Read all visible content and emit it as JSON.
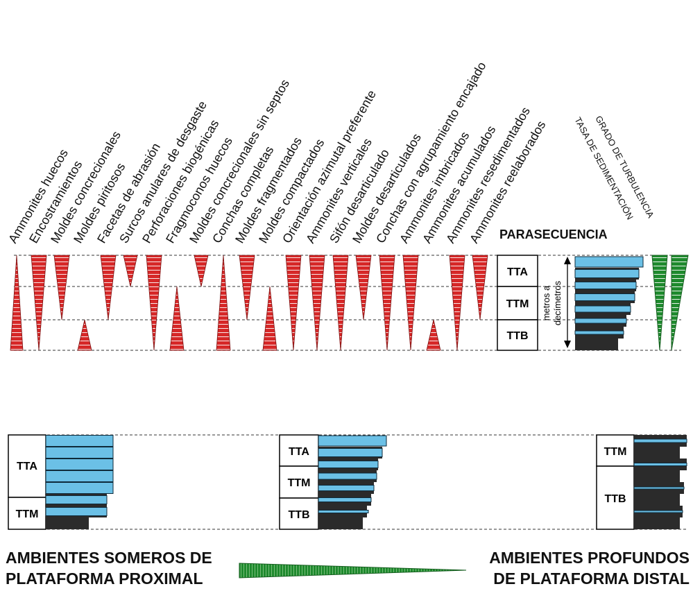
{
  "top_labels": [
    "Ammonites huecos",
    "Encostramientos",
    "Moldes concrecionales",
    "Moldes piritosos",
    "Facetas de abrasión",
    "Surcos anulares de desgaste",
    "Perforaciones biogénicas",
    "Fragmoconos huecos",
    "Moldes concrecionales sin septos",
    "Conchas completas",
    "Moldes fragmentados",
    "Moldes compactados",
    "Orientación azimutal preferente",
    "Ammonites verticales",
    "Sifón desarticulado",
    "Moldes desarticulados",
    "Conchas con agrupamiento encajado",
    "Ammonites imbricados",
    "Ammonites acumulados",
    "Ammonites resedimentados",
    "Ammonites reelaborados"
  ],
  "parasecuencia": {
    "title": "PARASECUENCIA",
    "boxes": [
      "TTA",
      "TTM",
      "TTB"
    ],
    "scale_label_1": "metros a",
    "scale_label_2": "decímetros"
  },
  "right_labels": {
    "tasa": "TASA DE SEDIMENTACIÓN",
    "grado": "GRADO DE TURBULENCIA"
  },
  "bottom": {
    "left_boxes": [
      "TTA",
      "TTM"
    ],
    "middle_boxes": [
      "TTA",
      "TTM",
      "TTB"
    ],
    "right_boxes": [
      "TTM",
      "TTB"
    ],
    "left_title_1": "AMBIENTES SOMEROS DE",
    "left_title_2": "PLATAFORMA PROXIMAL",
    "right_title_1": "AMBIENTES PROFUNDOS",
    "right_title_2": "DE PLATAFORMA DISTAL"
  },
  "colors": {
    "red": "#D62828",
    "green": "#1F8A2E",
    "blue": "#6BC0E6",
    "dark": "#2B2B2B"
  }
}
